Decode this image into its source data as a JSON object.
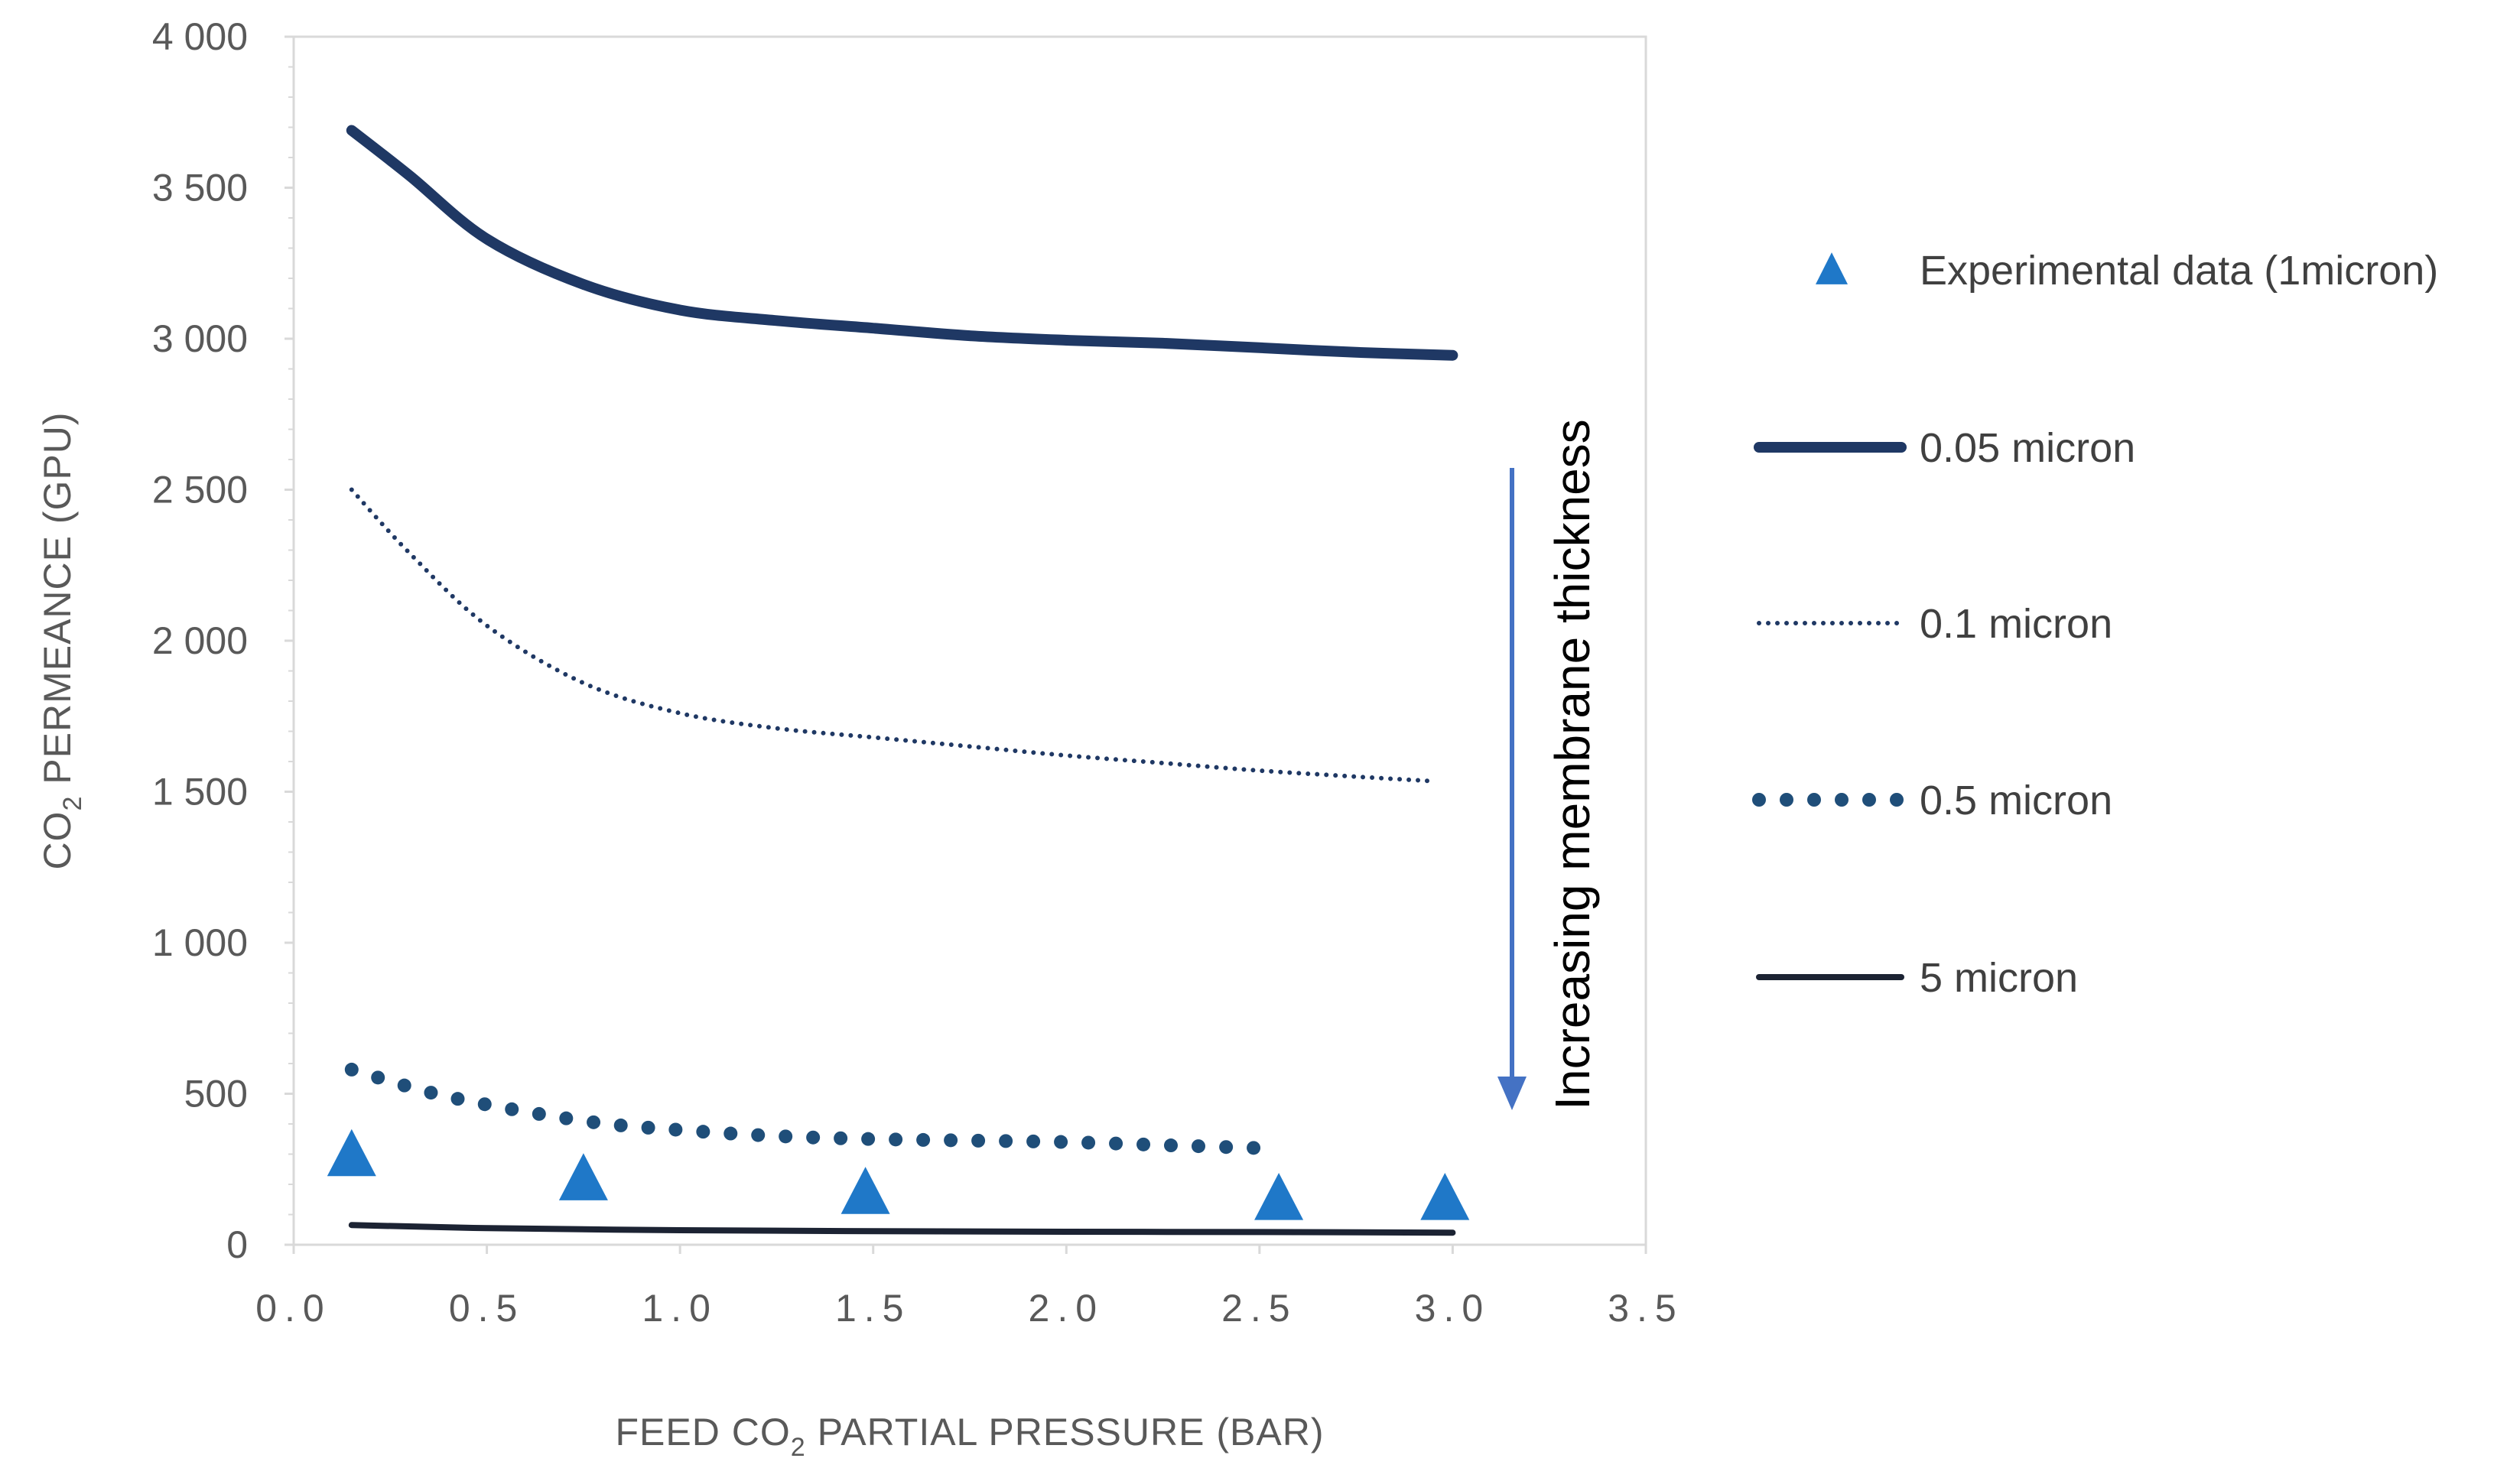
{
  "chart_data": {
    "type": "line",
    "x_axis": {
      "label_pre": "FEED CO",
      "label_sub": "2",
      "label_post": " PARTIAL PRESSURE (BAR)",
      "range": [
        0,
        3.5
      ],
      "ticks": [
        {
          "value": 0,
          "label": "0.0"
        },
        {
          "value": 0.5,
          "label": "0.5"
        },
        {
          "value": 1,
          "label": "1.0"
        },
        {
          "value": 1.5,
          "label": "1.5"
        },
        {
          "value": 2,
          "label": "2.0"
        },
        {
          "value": 2.5,
          "label": "2.5"
        },
        {
          "value": 3,
          "label": "3.0"
        },
        {
          "value": 3.5,
          "label": "3.5"
        }
      ]
    },
    "y_axis": {
      "label_pre": "CO",
      "label_sub": "2",
      "label_post": " PERMEANCE (GPU)",
      "range": [
        0,
        4000
      ],
      "ticks": [
        {
          "value": 0,
          "label": "0"
        },
        {
          "value": 500,
          "label": "500"
        },
        {
          "value": 1000,
          "label": "1 000"
        },
        {
          "value": 1500,
          "label": "1 500"
        },
        {
          "value": 2000,
          "label": "2 000"
        },
        {
          "value": 2500,
          "label": "2 500"
        },
        {
          "value": 3000,
          "label": "3 000"
        },
        {
          "value": 3500,
          "label": "3 500"
        },
        {
          "value": 4000,
          "label": "4 000"
        }
      ]
    },
    "series": [
      {
        "name": "Experimental data (1micron)",
        "kind": "scatter",
        "marker": "triangle",
        "color": "#1F78C8",
        "x": [
          0.15,
          0.75,
          1.48,
          2.55,
          2.98
        ],
        "y": [
          300,
          220,
          175,
          155,
          155
        ]
      },
      {
        "name": "0.05 micron",
        "kind": "line",
        "style": "solid-thick",
        "color": "#1F3864",
        "x": [
          0.15,
          0.3,
          0.5,
          0.75,
          1.0,
          1.25,
          1.5,
          1.75,
          2.0,
          2.25,
          2.5,
          2.75,
          3.0
        ],
        "y": [
          3690,
          3540,
          3330,
          3180,
          3095,
          3060,
          3035,
          3010,
          2995,
          2985,
          2970,
          2955,
          2945
        ]
      },
      {
        "name": "0.1 micron",
        "kind": "line",
        "style": "dotted-fine",
        "color": "#1F3864",
        "x": [
          0.15,
          0.3,
          0.5,
          0.75,
          1.0,
          1.25,
          1.5,
          1.75,
          2.0,
          2.25,
          2.5,
          2.75,
          2.95
        ],
        "y": [
          2500,
          2290,
          2050,
          1860,
          1760,
          1710,
          1680,
          1650,
          1620,
          1595,
          1570,
          1550,
          1535
        ]
      },
      {
        "name": "0.5 micron",
        "kind": "line",
        "style": "dotted-round",
        "color": "#1F4E79",
        "x": [
          0.15,
          0.4,
          0.75,
          1.0,
          1.25,
          1.5,
          1.75,
          2.0,
          2.25,
          2.5
        ],
        "y": [
          580,
          490,
          410,
          380,
          360,
          350,
          345,
          340,
          330,
          320
        ]
      },
      {
        "name": "5 micron",
        "kind": "line",
        "style": "solid",
        "color": "#1C2333",
        "x": [
          0.15,
          0.5,
          1.0,
          1.5,
          2.0,
          2.5,
          3.0
        ],
        "y": [
          65,
          55,
          48,
          45,
          43,
          42,
          40
        ]
      }
    ],
    "annotation": {
      "text": "Increasing membrane thickness",
      "arrow_color": "#4472C4"
    },
    "legend_position": "right",
    "grid": false
  }
}
